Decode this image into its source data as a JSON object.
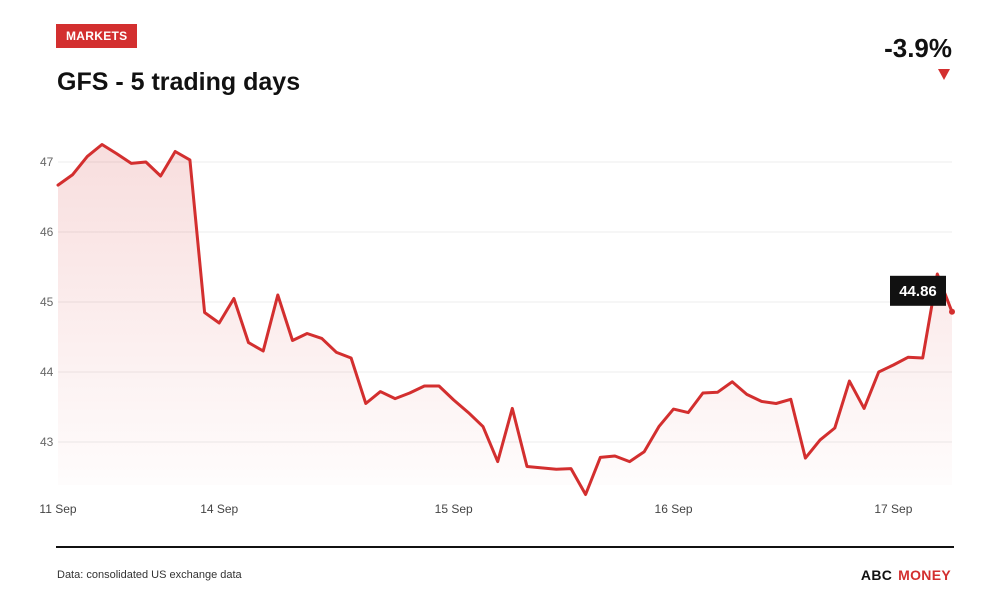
{
  "header": {
    "tag": "MARKETS",
    "title": "GFS - 5 trading days",
    "change": "-3.9%",
    "change_direction": "down",
    "accent_color": "#d32f2f"
  },
  "footer": {
    "source": "Data: consolidated US exchange data",
    "brand_part1": "ABC",
    "brand_part2": "MONEY"
  },
  "chart_data": {
    "type": "area",
    "title": "GFS - 5 trading days",
    "xlabel": "",
    "ylabel": "",
    "ylim": [
      42.5,
      47.3
    ],
    "yticks": [
      43,
      44,
      45,
      46,
      47
    ],
    "x_tick_labels": [
      "11 Sep",
      "14 Sep",
      "15 Sep",
      "16 Sep",
      "17 Sep"
    ],
    "x_tick_index": [
      0,
      11,
      27,
      42,
      57
    ],
    "last_value_label": "44.86",
    "series_color": "#d32f2f",
    "grid": true,
    "series": [
      {
        "values": [
          46.67,
          46.82,
          47.08,
          47.25,
          47.12,
          46.98,
          47.0,
          46.8,
          47.15,
          47.03,
          44.85,
          44.7,
          45.05,
          44.42,
          44.3,
          45.1,
          44.45,
          44.55,
          44.48,
          44.28,
          44.2,
          43.55,
          43.72,
          43.62,
          43.7,
          43.8,
          43.8,
          43.6,
          43.42,
          43.22,
          42.72,
          43.48,
          42.65,
          42.63,
          42.61,
          42.62,
          42.25,
          42.78,
          42.8,
          42.72,
          42.86,
          43.22,
          43.47,
          43.42,
          43.7,
          43.71,
          43.86,
          43.68,
          43.58,
          43.55,
          43.61,
          42.77,
          43.03,
          43.2,
          43.87,
          43.48,
          44.0,
          44.1,
          44.21,
          44.2,
          45.4,
          44.86
        ]
      }
    ]
  }
}
